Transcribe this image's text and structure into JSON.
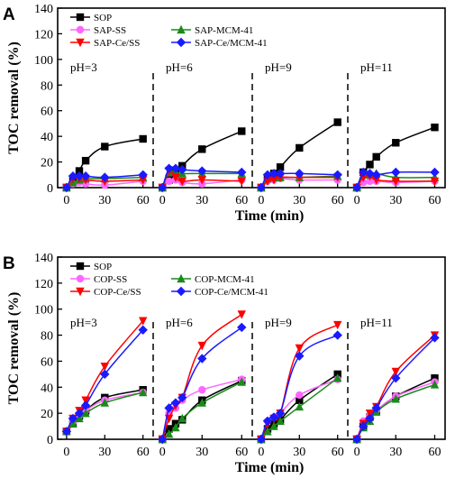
{
  "colors": {
    "SOP": "#000000",
    "SS": "#ff66ff",
    "MCM": "#1a8a1a",
    "CeSS": "#ff0000",
    "CeMCM": "#1a1aff"
  },
  "chart_data": [
    {
      "type": "line",
      "panel_label": "A",
      "xlabel": "Time (min)",
      "ylabel": "TOC removal (%)",
      "ylim": [
        0,
        140
      ],
      "yticks": [
        0,
        20,
        40,
        60,
        80,
        100,
        120,
        140
      ],
      "xticks": [
        0,
        30,
        60
      ],
      "xlim": [
        -7,
        68
      ],
      "ph_labels": [
        "pH=3",
        "pH=6",
        "pH=9",
        "pH=11"
      ],
      "legend": [
        "SOP",
        "SAP-SS",
        "SAP-MCM-41",
        "SAP-Ce/SS",
        "SAP-Ce/MCM-41"
      ],
      "series": [
        {
          "name": "SOP",
          "marker": "square",
          "color_key": "SOP",
          "x": [
            0,
            5,
            10,
            15,
            30,
            60
          ],
          "values": [
            [
              0,
              5,
              13,
              21,
              32,
              38
            ],
            [
              0,
              6,
              11,
              17,
              30,
              44
            ],
            [
              0,
              8,
              11,
              16,
              31,
              51
            ],
            [
              0,
              12,
              18,
              24,
              35,
              47
            ]
          ]
        },
        {
          "name": "SAP-SS",
          "marker": "circle",
          "color_key": "SS",
          "x": [
            0,
            5,
            10,
            15,
            30,
            60
          ],
          "values": [
            [
              0,
              3,
              4,
              3,
              2,
              5
            ],
            [
              0,
              5,
              6,
              4,
              3,
              6
            ],
            [
              0,
              5,
              6,
              7,
              6,
              6
            ],
            [
              0,
              4,
              5,
              5,
              4,
              5
            ]
          ]
        },
        {
          "name": "SAP-MCM-41",
          "marker": "triangle-up",
          "color_key": "MCM",
          "x": [
            0,
            5,
            10,
            15,
            30,
            60
          ],
          "values": [
            [
              0,
              4,
              6,
              7,
              7,
              8
            ],
            [
              0,
              12,
              12,
              11,
              11,
              11
            ],
            [
              0,
              7,
              8,
              8,
              8,
              9
            ],
            [
              0,
              10,
              10,
              11,
              8,
              8
            ]
          ]
        },
        {
          "name": "SAP-Ce/SS",
          "marker": "triangle-down",
          "color_key": "CeSS",
          "x": [
            0,
            5,
            10,
            15,
            30,
            60
          ],
          "values": [
            [
              0,
              7,
              7,
              6,
              5,
              6
            ],
            [
              0,
              13,
              8,
              5,
              6,
              5
            ],
            [
              0,
              5,
              6,
              8,
              8,
              8
            ],
            [
              0,
              8,
              9,
              6,
              5,
              5
            ]
          ]
        },
        {
          "name": "SAP-Ce/MCM-41",
          "marker": "diamond",
          "color_key": "CeMCM",
          "x": [
            0,
            5,
            10,
            15,
            30,
            60
          ],
          "values": [
            [
              0,
              9,
              9,
              9,
              8,
              10
            ],
            [
              0,
              15,
              15,
              14,
              13,
              12
            ],
            [
              0,
              10,
              11,
              11,
              11,
              10
            ],
            [
              0,
              12,
              11,
              10,
              12,
              12
            ]
          ]
        }
      ]
    },
    {
      "type": "line",
      "panel_label": "B",
      "xlabel": "Time (min)",
      "ylabel": "TOC removal (%)",
      "ylim": [
        0,
        140
      ],
      "yticks": [
        0,
        20,
        40,
        60,
        80,
        100,
        120,
        140
      ],
      "xticks": [
        0,
        30,
        60
      ],
      "xlim": [
        -7,
        68
      ],
      "ph_labels": [
        "pH=3",
        "pH=6",
        "pH=9",
        "pH=11"
      ],
      "legend": [
        "SOP",
        "COP-SS",
        "COP-MCM-41",
        "COP-Ce/SS",
        "COP-Ce/MCM-41"
      ],
      "series": [
        {
          "name": "SOP",
          "marker": "square",
          "color_key": "SOP",
          "x": [
            0,
            5,
            10,
            15,
            30,
            60
          ],
          "values": [
            [
              6,
              12,
              18,
              22,
              32,
              38
            ],
            [
              0,
              8,
              12,
              15,
              30,
              45
            ],
            [
              0,
              8,
              12,
              15,
              30,
              50
            ],
            [
              0,
              10,
              17,
              22,
              33,
              47
            ]
          ]
        },
        {
          "name": "COP-SS",
          "marker": "circle",
          "color_key": "SS",
          "x": [
            0,
            5,
            10,
            15,
            30,
            60
          ],
          "values": [
            [
              6,
              13,
              18,
              22,
              30,
              36
            ],
            [
              0,
              20,
              24,
              30,
              38,
              46
            ],
            [
              0,
              14,
              17,
              20,
              34,
              46
            ],
            [
              0,
              14,
              18,
              22,
              33,
              44
            ]
          ]
        },
        {
          "name": "COP-MCM-41",
          "marker": "triangle-up",
          "color_key": "MCM",
          "x": [
            0,
            5,
            10,
            15,
            30,
            60
          ],
          "values": [
            [
              6,
              12,
              16,
              20,
              28,
              36
            ],
            [
              0,
              4,
              9,
              16,
              28,
              44
            ],
            [
              0,
              6,
              10,
              14,
              25,
              47
            ],
            [
              0,
              9,
              14,
              21,
              31,
              42
            ]
          ]
        },
        {
          "name": "COP-Ce/SS",
          "marker": "triangle-down",
          "color_key": "CeSS",
          "x": [
            0,
            5,
            10,
            15,
            30,
            60
          ],
          "values": [
            [
              6,
              16,
              22,
              30,
              56,
              91
            ],
            [
              0,
              16,
              26,
              32,
              72,
              96
            ],
            [
              0,
              12,
              16,
              20,
              70,
              88
            ],
            [
              0,
              12,
              20,
              25,
              52,
              80
            ]
          ]
        },
        {
          "name": "COP-Ce/MCM-41",
          "marker": "diamond",
          "color_key": "CeMCM",
          "x": [
            0,
            5,
            10,
            15,
            30,
            60
          ],
          "values": [
            [
              6,
              16,
              20,
              26,
              50,
              84
            ],
            [
              0,
              24,
              28,
              32,
              62,
              86
            ],
            [
              0,
              14,
              17,
              20,
              64,
              80
            ],
            [
              0,
              10,
              16,
              24,
              47,
              78
            ]
          ]
        }
      ]
    }
  ]
}
